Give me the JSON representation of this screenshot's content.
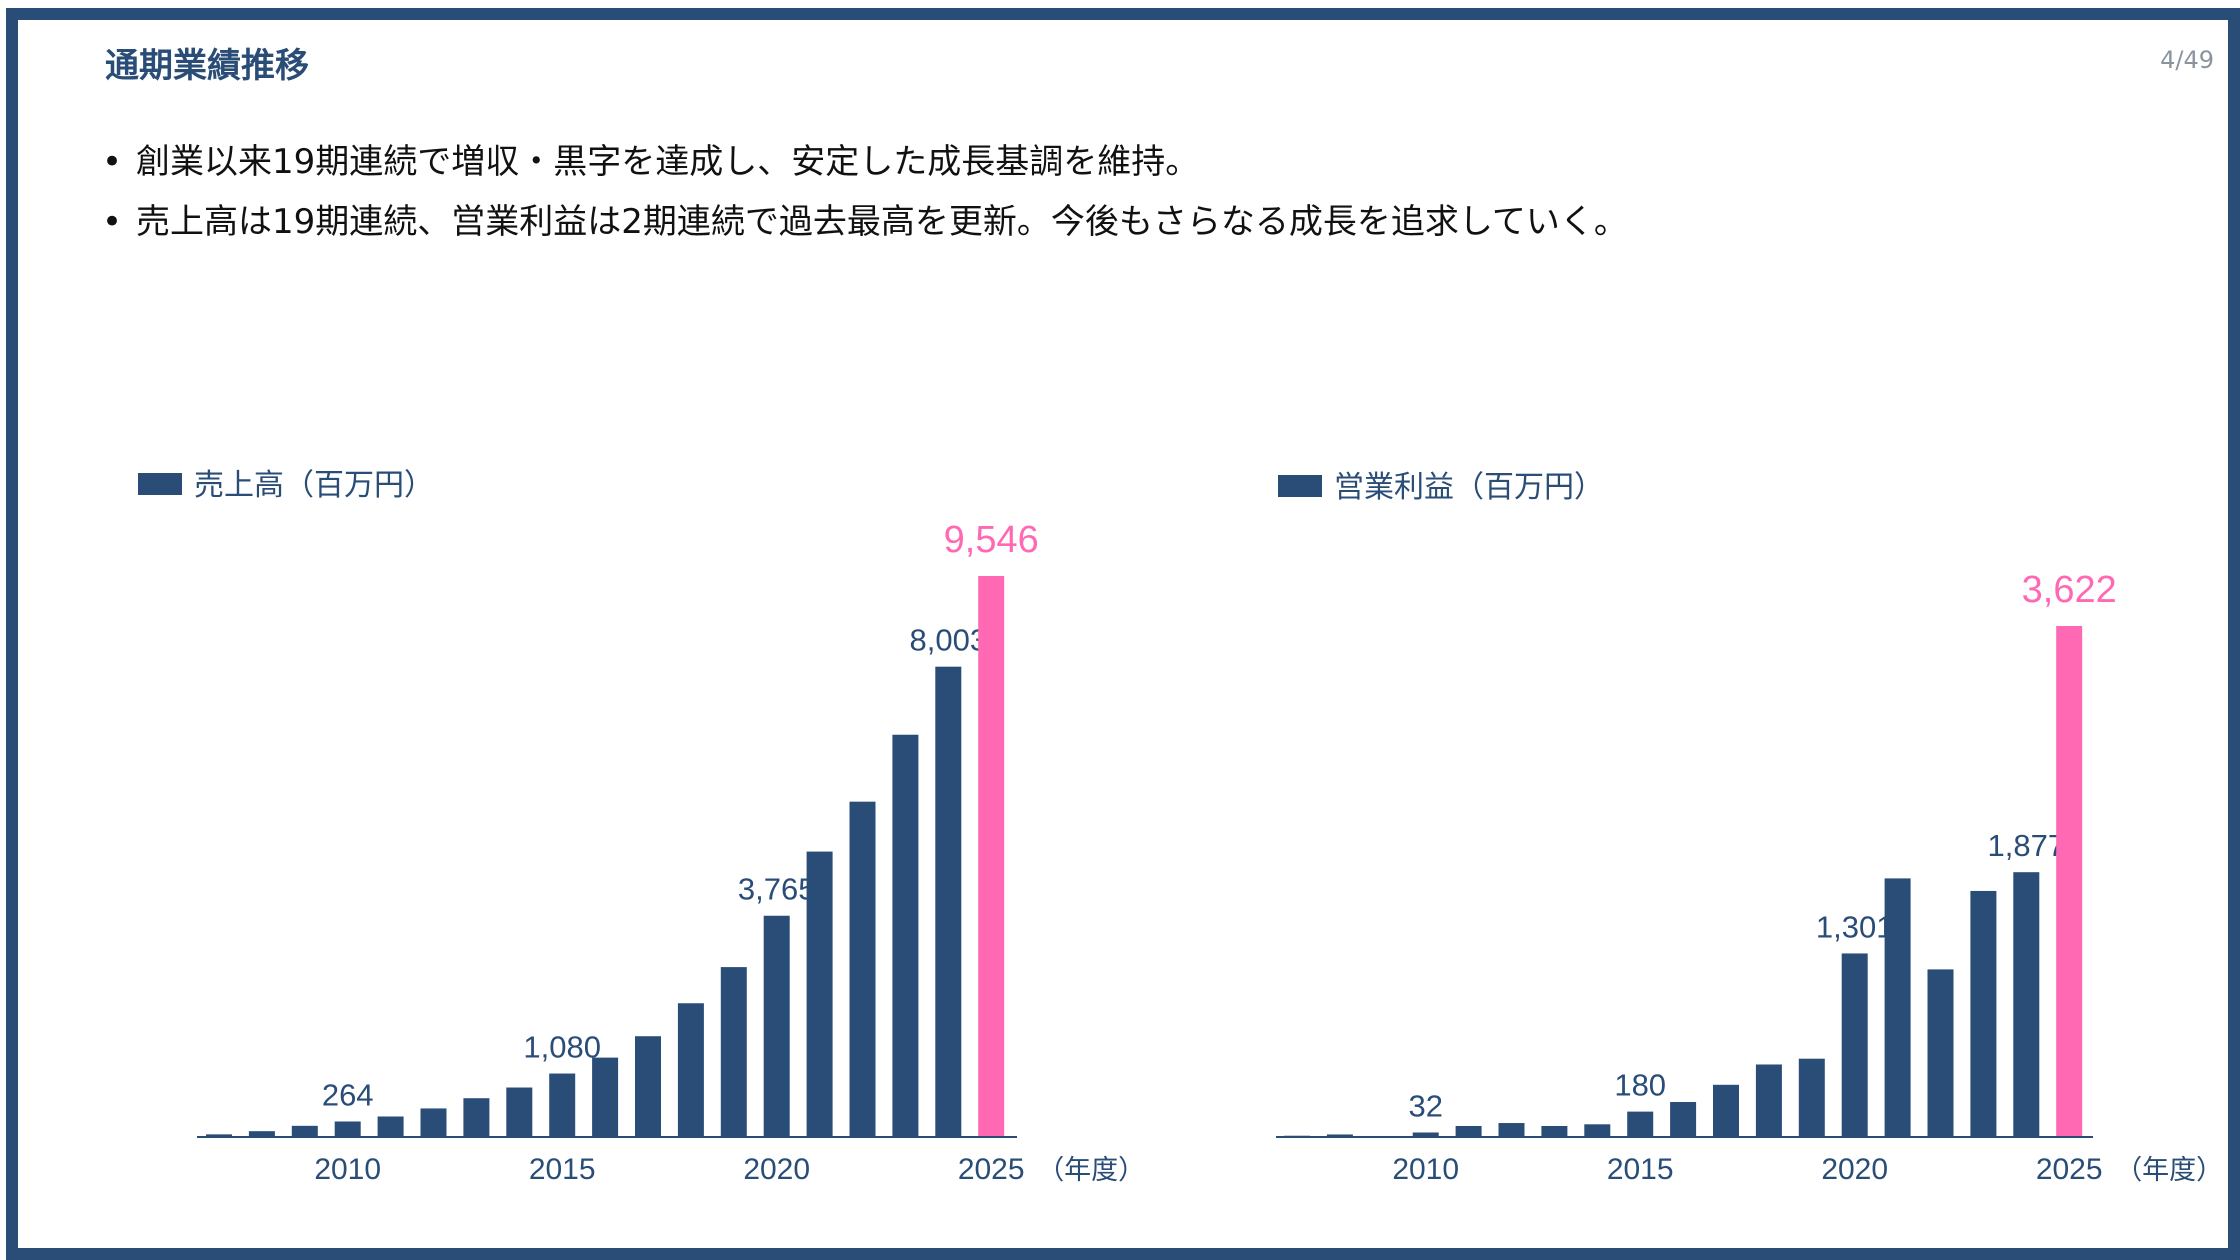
{
  "header": {
    "title": "通期業績推移",
    "page_number": "4/49"
  },
  "bullets": [
    "創業以来19期連続で増収・黒字を達成し、安定した成長基調を維持。",
    "売上高は19期連続、営業利益は2期連続で過去最高を更新。今後もさらなる成長を追求していく。"
  ],
  "colors": {
    "bar": "#2a4d78",
    "highlight": "#ff69b4",
    "text": "#2a4d78"
  },
  "chart_data": [
    {
      "type": "bar",
      "legend": "売上高（百万円）",
      "unit_label": "（年度）",
      "x": [
        2007,
        2008,
        2009,
        2010,
        2011,
        2012,
        2013,
        2014,
        2015,
        2016,
        2017,
        2018,
        2019,
        2020,
        2021,
        2022,
        2023,
        2024,
        2025
      ],
      "values": [
        45,
        99,
        190,
        264,
        349,
        486,
        660,
        842,
        1080,
        1351,
        1715,
        2276,
        2891,
        3765,
        4857,
        5706,
        6845,
        8003,
        9546
      ],
      "data_labels": {
        "2010": "264",
        "2015": "1,080",
        "2020": "3,765",
        "2024": "8,003",
        "2025": "9,546"
      },
      "highlight_year": 2025,
      "tick_labels": [
        "2010",
        "2015",
        "2020",
        "2025"
      ],
      "ylim": [
        0,
        9546
      ]
    },
    {
      "type": "bar",
      "legend": "営業利益（百万円）",
      "unit_label": "（年度）",
      "x": [
        2007,
        2008,
        2009,
        2010,
        2011,
        2012,
        2013,
        2014,
        2015,
        2016,
        2017,
        2018,
        2019,
        2020,
        2021,
        2022,
        2023,
        2024,
        2025
      ],
      "values": [
        9,
        18,
        5,
        32,
        78,
        99,
        78,
        90,
        180,
        248,
        370,
        514,
        555,
        1301,
        1833,
        1188,
        1744,
        1877,
        3622
      ],
      "data_labels": {
        "2010": "32",
        "2015": "180",
        "2020": "1,301",
        "2024": "1,877",
        "2025": "3,622"
      },
      "highlight_year": 2025,
      "tick_labels": [
        "2010",
        "2015",
        "2020",
        "2025"
      ],
      "ylim": [
        0,
        3622
      ]
    }
  ]
}
